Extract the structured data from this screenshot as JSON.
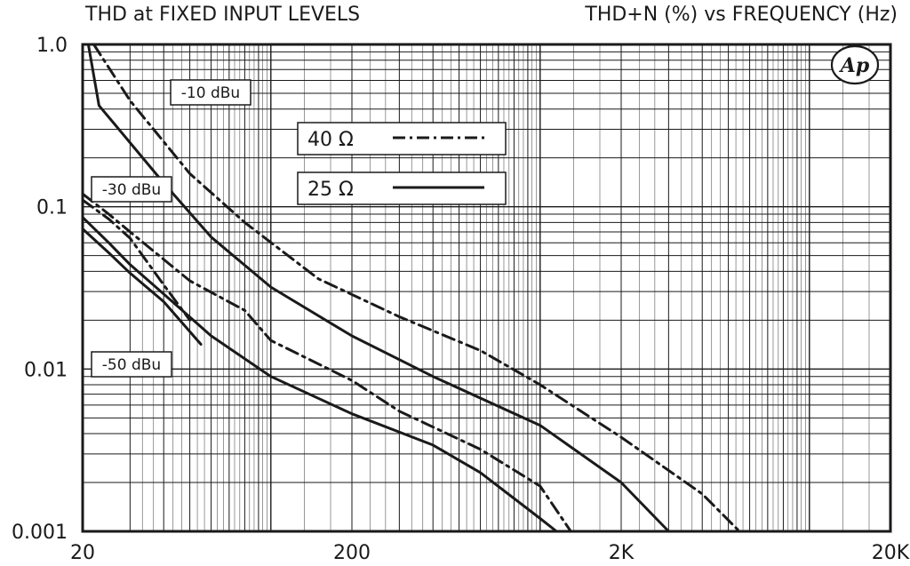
{
  "chart_data": {
    "type": "line",
    "title_left": "THD at FIXED INPUT LEVELS",
    "title_right": "THD+N (%) vs FREQUENCY (Hz)",
    "x_scale": "log",
    "y_scale": "log",
    "xlim": [
      20,
      20000
    ],
    "ylim": [
      0.001,
      1.0
    ],
    "x_ticks": [
      {
        "value": 20,
        "label": "20"
      },
      {
        "value": 200,
        "label": "200"
      },
      {
        "value": 2000,
        "label": "2K"
      },
      {
        "value": 20000,
        "label": "20K"
      }
    ],
    "y_ticks": [
      {
        "value": 1.0,
        "label": "1.0"
      },
      {
        "value": 0.1,
        "label": "0.1"
      },
      {
        "value": 0.01,
        "label": "0.01"
      },
      {
        "value": 0.001,
        "label": "0.001"
      }
    ],
    "grid": true,
    "logo": "Ap",
    "legend": {
      "placement": "top-center",
      "entries": [
        {
          "label": "40 Ω",
          "style": "dash-dot"
        },
        {
          "label": "25 Ω",
          "style": "solid"
        }
      ]
    },
    "level_labels": [
      {
        "text": "-10 dBu"
      },
      {
        "text": "-30 dBu"
      },
      {
        "text": "-50 dBu"
      }
    ],
    "series": [
      {
        "load": "25 Ω",
        "level": "-10 dBu",
        "style": "solid",
        "points": [
          [
            21,
            1.0
          ],
          [
            23,
            0.42
          ],
          [
            26,
            0.33
          ],
          [
            40,
            0.14
          ],
          [
            60,
            0.065
          ],
          [
            100,
            0.032
          ],
          [
            200,
            0.016
          ],
          [
            400,
            0.009
          ],
          [
            1000,
            0.0045
          ],
          [
            2000,
            0.002
          ],
          [
            3000,
            0.001
          ]
        ]
      },
      {
        "load": "40 Ω",
        "level": "-10 dBu",
        "style": "dash-dot",
        "points": [
          [
            22,
            1.0
          ],
          [
            25,
            0.72
          ],
          [
            30,
            0.45
          ],
          [
            50,
            0.16
          ],
          [
            80,
            0.08
          ],
          [
            150,
            0.036
          ],
          [
            300,
            0.021
          ],
          [
            600,
            0.013
          ],
          [
            1000,
            0.008
          ],
          [
            2000,
            0.0038
          ],
          [
            4000,
            0.0017
          ],
          [
            5500,
            0.001
          ]
        ]
      },
      {
        "load": "25 Ω",
        "level": "-30 dBu",
        "style": "solid",
        "points": [
          [
            20,
            0.086
          ],
          [
            25,
            0.06
          ],
          [
            30,
            0.044
          ],
          [
            40,
            0.029
          ],
          [
            60,
            0.016
          ],
          [
            100,
            0.009
          ],
          [
            200,
            0.0053
          ],
          [
            400,
            0.0034
          ],
          [
            600,
            0.0023
          ],
          [
            1000,
            0.0012
          ],
          [
            1150,
            0.001
          ]
        ]
      },
      {
        "load": "40 Ω",
        "level": "-30 dBu",
        "style": "dash-dot",
        "points": [
          [
            20,
            0.12
          ],
          [
            25,
            0.09
          ],
          [
            30,
            0.07
          ],
          [
            50,
            0.035
          ],
          [
            80,
            0.023
          ],
          [
            100,
            0.015
          ],
          [
            200,
            0.0085
          ],
          [
            300,
            0.0055
          ],
          [
            600,
            0.0032
          ],
          [
            1000,
            0.0019
          ],
          [
            1300,
            0.001
          ]
        ]
      },
      {
        "load": "25 Ω",
        "level": "-50 dBu",
        "style": "solid",
        "points": [
          [
            20,
            0.073
          ],
          [
            25,
            0.052
          ],
          [
            30,
            0.039
          ],
          [
            40,
            0.026
          ],
          [
            55,
            0.0142
          ]
        ]
      },
      {
        "load": "40 Ω",
        "level": "-50 dBu",
        "style": "dash-dot",
        "points": [
          [
            20,
            0.11
          ],
          [
            25,
            0.084
          ],
          [
            30,
            0.064
          ],
          [
            40,
            0.033
          ],
          [
            50,
            0.02
          ]
        ]
      }
    ]
  }
}
